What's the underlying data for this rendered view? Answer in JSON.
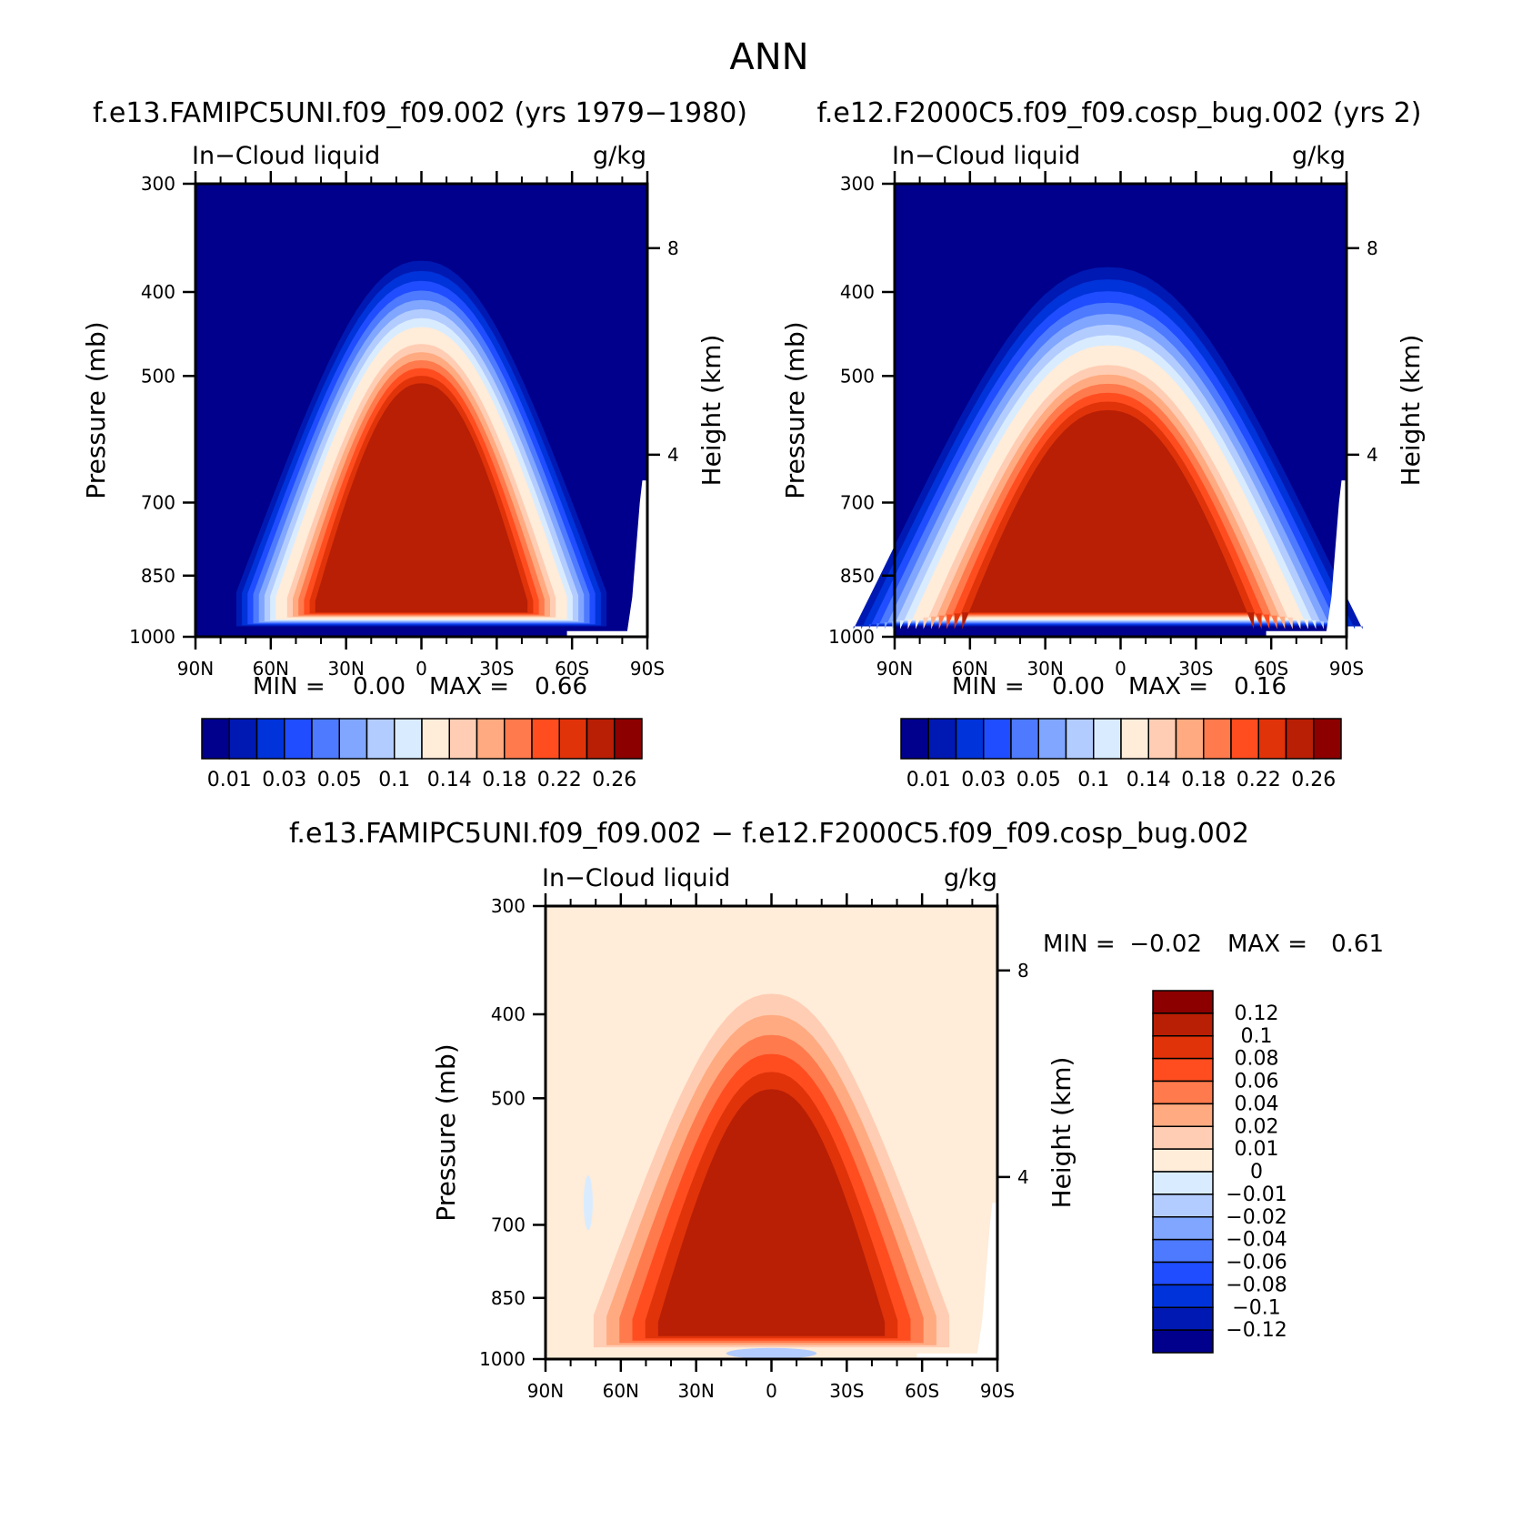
{
  "figure_title": "ANN",
  "colors": {
    "seq": [
      "#00008c",
      "#0019b3",
      "#0033d9",
      "#1f4dff",
      "#4d7aff",
      "#80a6ff",
      "#b3ccff",
      "#d9ecff",
      "#ffecd9",
      "#ffcdb3",
      "#ffaa80",
      "#ff7a4d",
      "#ff4d1f",
      "#e0330a",
      "#b81f05",
      "#8c0000"
    ],
    "diff": [
      "#8c0000",
      "#b81f05",
      "#e0330a",
      "#ff4d1f",
      "#ff7a4d",
      "#ffaa80",
      "#ffcdb3",
      "#ffecd9",
      "#d9ecff",
      "#b3ccff",
      "#80a6ff",
      "#4d7aff",
      "#1f4dff",
      "#0033d9",
      "#0019b3",
      "#00008c"
    ]
  },
  "chart_data": [
    {
      "type": "heatmap",
      "title": "f.e13.FAMIPC5UNI.f09_f09.002 (yrs 1979−1980)",
      "left_string": "In−Cloud liquid",
      "right_string": "g/kg",
      "xlabel": "",
      "ylabel": "Pressure (mb)",
      "ylabel_right": "Height (km)",
      "x_ticks": [
        "90N",
        "60N",
        "30N",
        "0",
        "30S",
        "60S",
        "90S"
      ],
      "x_values": [
        90,
        60,
        30,
        0,
        -30,
        -60,
        -90
      ],
      "xlim": [
        90,
        -90
      ],
      "y_ticks": [
        "300",
        "400",
        "500",
        "700",
        "850",
        "1000"
      ],
      "y_values": [
        300,
        400,
        500,
        700,
        850,
        1000
      ],
      "ylim": [
        1000,
        300
      ],
      "y_log": true,
      "height_ticks": [
        "8",
        "4"
      ],
      "height_values": [
        8,
        4
      ],
      "min_label": "MIN =",
      "min_value": "0.00",
      "max_label": "MAX =",
      "max_value": "0.66",
      "colorbar_labels": [
        "0.01",
        "0.03",
        "0.05",
        "0.1",
        "0.14",
        "0.18",
        "0.22",
        "0.26"
      ],
      "colorbar_levels": [
        0.005,
        0.01,
        0.02,
        0.03,
        0.04,
        0.05,
        0.075,
        0.1,
        0.12,
        0.14,
        0.16,
        0.18,
        0.2,
        0.22,
        0.24,
        0.26
      ],
      "field": {
        "base": 0,
        "core": 0.66,
        "top": 520,
        "center": 0,
        "halfwidth": 40,
        "ridge": 0
      }
    },
    {
      "type": "heatmap",
      "title": "f.e12.F2000C5.f09_f09.cosp_bug.002 (yrs 2)",
      "left_string": "In−Cloud liquid",
      "right_string": "g/kg",
      "xlabel": "",
      "ylabel": "Pressure (mb)",
      "ylabel_right": "Height (km)",
      "x_ticks": [
        "90N",
        "60N",
        "30N",
        "0",
        "30S",
        "60S",
        "90S"
      ],
      "x_values": [
        90,
        60,
        30,
        0,
        -30,
        -60,
        -90
      ],
      "xlim": [
        90,
        -90
      ],
      "y_ticks": [
        "300",
        "400",
        "500",
        "700",
        "850",
        "1000"
      ],
      "y_values": [
        300,
        400,
        500,
        700,
        850,
        1000
      ],
      "ylim": [
        1000,
        300
      ],
      "y_log": true,
      "height_ticks": [
        "8",
        "4"
      ],
      "height_values": [
        8,
        4
      ],
      "min_label": "MIN =",
      "min_value": "0.00",
      "max_label": "MAX =",
      "max_value": "0.16",
      "colorbar_labels": [
        "0.01",
        "0.03",
        "0.05",
        "0.1",
        "0.14",
        "0.18",
        "0.22",
        "0.26"
      ],
      "colorbar_levels": [
        0.005,
        0.01,
        0.02,
        0.03,
        0.04,
        0.05,
        0.075,
        0.1,
        0.12,
        0.14,
        0.16,
        0.18,
        0.2,
        0.22,
        0.24,
        0.26
      ],
      "field": {
        "base": 0,
        "core": 0.16,
        "top": 560,
        "center": 5,
        "halfwidth": 55,
        "ridge": 1
      }
    },
    {
      "type": "heatmap",
      "title": "f.e13.FAMIPC5UNI.f09_f09.002 − f.e12.F2000C5.f09_f09.cosp_bug.002",
      "left_string": "In−Cloud liquid",
      "right_string": "g/kg",
      "xlabel": "",
      "ylabel": "Pressure (mb)",
      "ylabel_right": "Height (km)",
      "x_ticks": [
        "90N",
        "60N",
        "30N",
        "0",
        "30S",
        "60S",
        "90S"
      ],
      "x_values": [
        90,
        60,
        30,
        0,
        -30,
        -60,
        -90
      ],
      "xlim": [
        90,
        -90
      ],
      "y_ticks": [
        "300",
        "400",
        "500",
        "700",
        "850",
        "1000"
      ],
      "y_values": [
        300,
        400,
        500,
        700,
        850,
        1000
      ],
      "ylim": [
        1000,
        300
      ],
      "y_log": true,
      "height_ticks": [
        "8",
        "4"
      ],
      "height_values": [
        8,
        4
      ],
      "min_label": "MIN =",
      "min_value": "−0.02",
      "max_label": "MAX =",
      "max_value": "0.61",
      "colorbar_labels": [
        "0.12",
        "0.1",
        "0.08",
        "0.06",
        "0.04",
        "0.02",
        "0.01",
        "0",
        "−0.01",
        "−0.02",
        "−0.04",
        "−0.06",
        "−0.08",
        "−0.1",
        "−0.12"
      ],
      "colorbar_levels": [
        0.12,
        0.1,
        0.08,
        0.06,
        0.04,
        0.02,
        0.01,
        0,
        -0.01,
        -0.02,
        -0.04,
        -0.06,
        -0.08,
        -0.1,
        -0.12
      ],
      "field": {
        "base": 0.005,
        "core": 0.61,
        "top": 510,
        "center": 0,
        "halfwidth": 40,
        "ridge": 0
      }
    }
  ]
}
